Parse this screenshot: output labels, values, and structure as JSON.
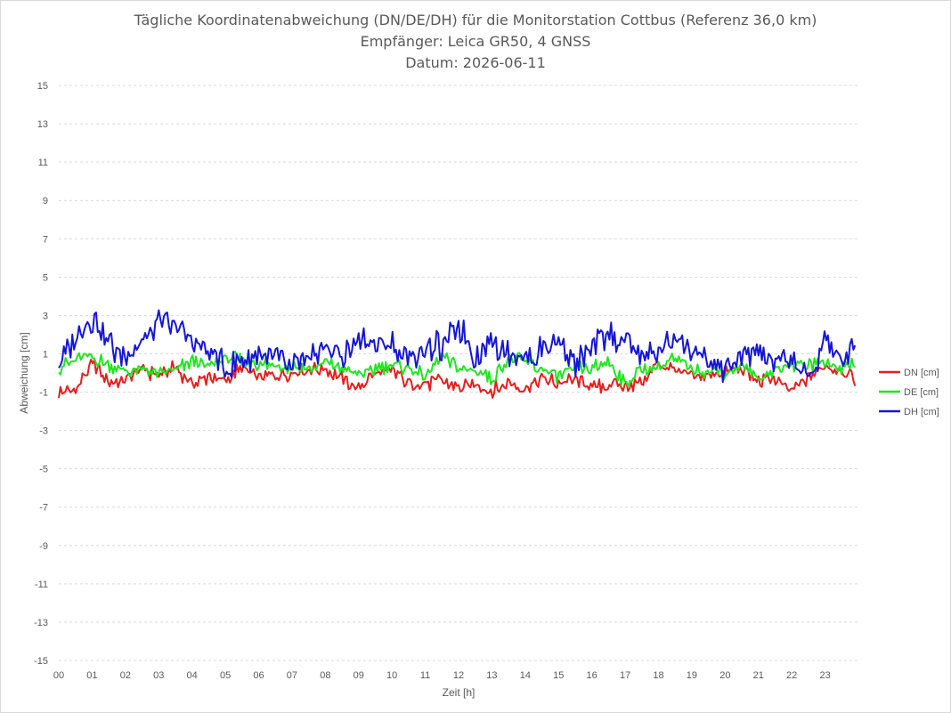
{
  "chart_data": {
    "type": "line",
    "title_lines": [
      "Tägliche Koordinatenabweichung (DN/DE/DH) für die Monitorstation Cottbus (Referenz 36,0 km)",
      "Empfänger: Leica GR50, 4 GNSS",
      "Datum: 2026-06-11"
    ],
    "xlabel": "Zeit [h]",
    "ylabel": "Abweichung [cm]",
    "xlim": [
      0,
      24
    ],
    "ylim": [
      -15,
      15
    ],
    "x_ticks": [
      "00",
      "01",
      "02",
      "03",
      "04",
      "05",
      "06",
      "07",
      "08",
      "09",
      "10",
      "11",
      "12",
      "13",
      "14",
      "15",
      "16",
      "17",
      "18",
      "19",
      "20",
      "21",
      "22",
      "23"
    ],
    "y_ticks": [
      15,
      13,
      11,
      9,
      7,
      5,
      3,
      1,
      -1,
      -3,
      -5,
      -7,
      -9,
      -11,
      -13,
      -15
    ],
    "grid": "horizontal-dashed",
    "legend_position": "right",
    "x_hours": [
      0,
      0.5,
      1,
      1.5,
      2,
      2.5,
      3,
      3.5,
      4,
      4.5,
      5,
      5.5,
      6,
      6.5,
      7,
      7.5,
      8,
      8.5,
      9,
      9.5,
      10,
      10.5,
      11,
      11.5,
      12,
      12.5,
      13,
      13.5,
      14,
      14.5,
      15,
      15.5,
      16,
      16.5,
      17,
      17.5,
      18,
      18.5,
      19,
      19.5,
      20,
      20.5,
      21,
      21.5,
      22,
      22.5,
      23,
      23.5,
      23.9
    ],
    "series": [
      {
        "name": "DN [cm]",
        "color": "#e61e1e",
        "values": [
          -1.0,
          -0.8,
          0.5,
          -0.5,
          -0.3,
          0.2,
          -0.2,
          0.3,
          -0.6,
          -0.2,
          -0.4,
          0.3,
          -0.3,
          -0.2,
          -0.1,
          0.2,
          0.2,
          -0.3,
          -0.8,
          0.0,
          0.1,
          -0.5,
          -0.6,
          -0.4,
          -0.7,
          -0.6,
          -0.9,
          -0.5,
          -0.8,
          -0.3,
          -0.5,
          -0.4,
          -0.8,
          -0.6,
          -0.7,
          -0.5,
          0.5,
          0.2,
          -0.3,
          -0.1,
          0.0,
          0.2,
          -0.5,
          -0.3,
          -1.0,
          -0.2,
          0.3,
          0.2,
          -0.3
        ]
      },
      {
        "name": "DE [cm]",
        "color": "#1ee61e",
        "values": [
          0.3,
          0.7,
          0.8,
          0.4,
          0.1,
          0.2,
          -0.1,
          0.2,
          0.6,
          0.4,
          0.8,
          0.6,
          0.5,
          0.4,
          0.3,
          0.2,
          0.5,
          0.2,
          -0.1,
          0.2,
          0.4,
          0.3,
          -0.2,
          0.8,
          0.3,
          0.1,
          -0.3,
          0.8,
          0.6,
          0.2,
          -0.2,
          0.2,
          0.2,
          0.6,
          -0.5,
          0.2,
          0.4,
          0.7,
          0.2,
          0.1,
          0.0,
          0.3,
          -0.3,
          0.1,
          0.5,
          0.4,
          0.6,
          0.3,
          0.6
        ]
      },
      {
        "name": "DH [cm]",
        "color": "#1616d6",
        "values": [
          0.2,
          1.8,
          2.8,
          1.5,
          0.8,
          1.8,
          2.6,
          2.4,
          1.7,
          1.2,
          0.2,
          0.8,
          1.0,
          0.9,
          0.2,
          0.5,
          1.5,
          0.8,
          1.8,
          1.6,
          1.4,
          0.6,
          1.4,
          1.3,
          2.5,
          0.7,
          1.6,
          1.1,
          0.8,
          1.2,
          1.6,
          0.5,
          1.4,
          2.0,
          1.8,
          0.8,
          1.2,
          2.0,
          1.1,
          0.5,
          0.2,
          0.6,
          1.2,
          0.4,
          0.8,
          -0.3,
          1.7,
          0.5,
          1.8
        ]
      }
    ]
  }
}
